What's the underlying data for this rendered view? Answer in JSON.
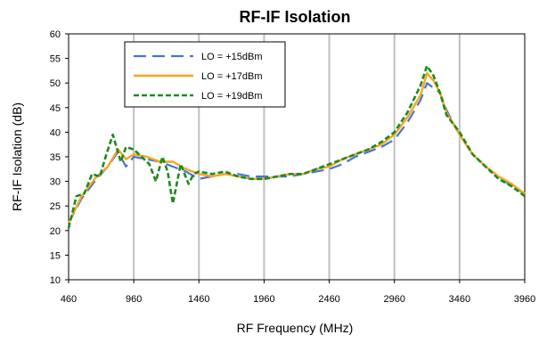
{
  "chart_data": {
    "type": "line",
    "title": "RF-IF Isolation",
    "xlabel": "RF Frequency (MHz)",
    "ylabel": "RF-IF Isolation (dB)",
    "xlim": [
      460,
      3960
    ],
    "ylim": [
      10,
      60
    ],
    "x_ticks": [
      460,
      960,
      1460,
      1960,
      2460,
      2960,
      3460,
      3960
    ],
    "y_ticks": [
      10,
      15,
      20,
      25,
      30,
      35,
      40,
      45,
      50,
      55,
      60
    ],
    "grid": "vertical",
    "legend_position": "top-left",
    "series": [
      {
        "name": "LO = +15dBm",
        "color": "#4a72d9",
        "style": "long-dash",
        "x": [
          460,
          560,
          660,
          760,
          840,
          900,
          960,
          1060,
          1160,
          1260,
          1360,
          1460,
          1560,
          1660,
          1760,
          1860,
          1960,
          2060,
          2160,
          2260,
          2360,
          2460,
          2560,
          2660,
          2760,
          2860,
          2960,
          3060,
          3160,
          3210,
          3260,
          3310,
          3360,
          3460,
          3560,
          3660,
          3760,
          3860,
          3960
        ],
        "y": [
          21.5,
          26.5,
          30,
          33,
          36,
          33,
          35,
          34.5,
          34,
          33,
          32,
          30.5,
          31,
          31.5,
          31.5,
          31,
          31,
          31,
          31,
          31.5,
          32,
          32.5,
          33.5,
          35,
          36,
          37,
          38.5,
          42,
          46.5,
          50,
          49,
          48,
          44.5,
          39.5,
          35.5,
          33,
          31,
          29,
          27.5
        ]
      },
      {
        "name": "LO = +17dBm",
        "color": "#f5a623",
        "style": "solid",
        "x": [
          460,
          560,
          660,
          760,
          840,
          900,
          960,
          1060,
          1160,
          1260,
          1360,
          1460,
          1560,
          1660,
          1760,
          1860,
          1960,
          2060,
          2160,
          2260,
          2360,
          2460,
          2560,
          2660,
          2760,
          2860,
          2960,
          3060,
          3160,
          3210,
          3260,
          3310,
          3360,
          3460,
          3560,
          3660,
          3760,
          3860,
          3960
        ],
        "y": [
          21.5,
          27,
          30.5,
          33,
          36.5,
          34.5,
          35.5,
          35,
          34,
          34,
          32.5,
          31.5,
          31,
          31.5,
          31,
          30.5,
          30.5,
          31,
          31.5,
          31.5,
          32.5,
          33,
          34.5,
          35.5,
          36.5,
          37.5,
          39.5,
          43,
          47.5,
          52,
          50.5,
          48,
          44,
          39.5,
          35.5,
          33,
          31,
          29.5,
          27.5
        ]
      },
      {
        "name": "LO = +19dBm",
        "color": "#1e8a1e",
        "style": "short-dash",
        "x": [
          460,
          520,
          580,
          640,
          700,
          750,
          800,
          860,
          900,
          960,
          1020,
          1080,
          1130,
          1180,
          1220,
          1260,
          1320,
          1380,
          1420,
          1460,
          1560,
          1660,
          1760,
          1860,
          1960,
          2060,
          2160,
          2260,
          2360,
          2460,
          2560,
          2660,
          2760,
          2860,
          2960,
          3060,
          3160,
          3210,
          3260,
          3310,
          3360,
          3460,
          3560,
          3660,
          3760,
          3860,
          3960
        ],
        "y": [
          20.5,
          27,
          27.5,
          31.5,
          31,
          35.5,
          39.5,
          34,
          37,
          36.5,
          35,
          33.5,
          30,
          35,
          32,
          25.5,
          33.5,
          29.5,
          31.5,
          32,
          31.5,
          32,
          31,
          30.5,
          30.5,
          31,
          31.5,
          31.5,
          32.5,
          33.5,
          34.5,
          35.5,
          36.5,
          38,
          40,
          44,
          49.5,
          53.5,
          51.5,
          48,
          43.5,
          40,
          35.5,
          33,
          30.5,
          29,
          27
        ]
      }
    ]
  }
}
